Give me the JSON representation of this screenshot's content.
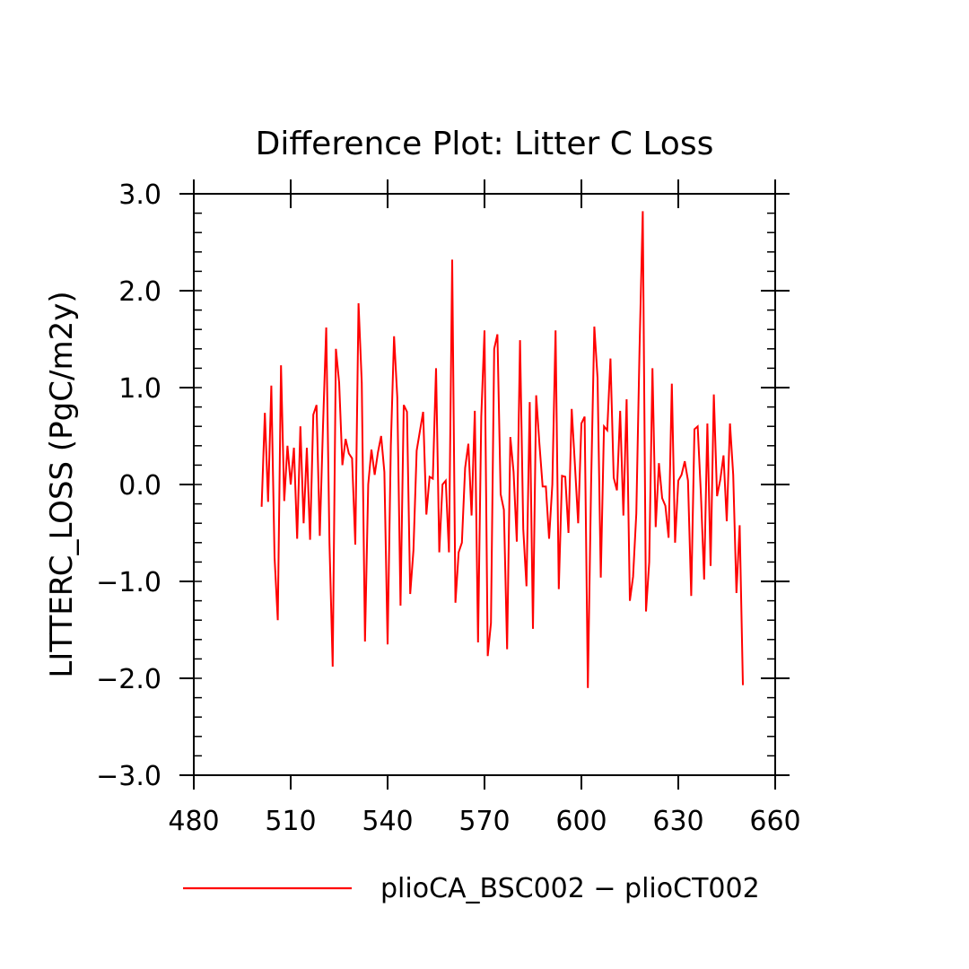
{
  "chart_data": {
    "type": "line",
    "title": "Difference Plot: Litter C Loss",
    "ylabel": "LITTERC_LOSS (PgC/m2y)",
    "xlabel": "",
    "xlim": [
      480,
      660
    ],
    "ylim": [
      -3.0,
      3.0
    ],
    "x_ticks": [
      480,
      510,
      540,
      570,
      600,
      630,
      660
    ],
    "x_tick_labels": [
      "480",
      "510",
      "540",
      "570",
      "600",
      "630",
      "660"
    ],
    "y_ticks": [
      -3.0,
      -2.0,
      -1.0,
      0.0,
      1.0,
      2.0,
      3.0
    ],
    "y_tick_labels": [
      "−3.0",
      "−2.0",
      "−1.0",
      "0.0",
      "1.0",
      "2.0",
      "3.0"
    ],
    "grid": false,
    "legend_position": "bottom",
    "series": [
      {
        "name": "plioCA_BSC002 − plioCT002",
        "color": "#ff0000",
        "x": [
          501,
          502,
          503,
          504,
          505,
          506,
          507,
          508,
          509,
          510,
          511,
          512,
          513,
          514,
          515,
          516,
          517,
          518,
          519,
          520,
          521,
          522,
          523,
          524,
          525,
          526,
          527,
          528,
          529,
          530,
          531,
          532,
          533,
          534,
          535,
          536,
          537,
          538,
          539,
          540,
          541,
          542,
          543,
          544,
          545,
          546,
          547,
          548,
          549,
          550,
          551,
          552,
          553,
          554,
          555,
          556,
          557,
          558,
          559,
          560,
          561,
          562,
          563,
          564,
          565,
          566,
          567,
          568,
          569,
          570,
          571,
          572,
          573,
          574,
          575,
          576,
          577,
          578,
          579,
          580,
          581,
          582,
          583,
          584,
          585,
          586,
          587,
          588,
          589,
          590,
          591,
          592,
          593,
          594,
          595,
          596,
          597,
          598,
          599,
          600,
          601,
          602,
          603,
          604,
          605,
          606,
          607,
          608,
          609,
          610,
          611,
          612,
          613,
          614,
          615,
          616,
          617,
          618,
          619,
          620,
          621,
          622,
          623,
          624,
          625,
          626,
          627,
          628,
          629,
          630,
          631,
          632,
          633,
          634,
          635,
          636,
          637,
          638,
          639,
          640,
          641,
          642,
          643,
          644,
          645,
          646,
          647,
          648,
          649,
          650
        ],
        "values": [
          -0.23,
          0.74,
          -0.18,
          1.02,
          -0.75,
          -1.4,
          1.23,
          -0.17,
          0.4,
          0.0,
          0.38,
          -0.56,
          0.6,
          -0.4,
          0.38,
          -0.57,
          0.72,
          0.82,
          -0.53,
          0.6,
          1.62,
          -0.6,
          -1.88,
          1.4,
          1.05,
          0.2,
          0.47,
          0.32,
          0.27,
          -0.62,
          1.87,
          1.05,
          -1.62,
          0.0,
          0.36,
          0.1,
          0.33,
          0.5,
          0.13,
          -1.65,
          0.4,
          1.53,
          0.9,
          -1.25,
          0.82,
          0.75,
          -1.13,
          -0.68,
          0.35,
          0.55,
          0.75,
          -0.31,
          0.08,
          0.06,
          1.2,
          -0.7,
          0.0,
          0.04,
          -0.7,
          2.32,
          -1.22,
          -0.7,
          -0.6,
          0.17,
          0.42,
          -0.32,
          0.76,
          -1.63,
          0.7,
          1.59,
          -1.77,
          -1.43,
          1.4,
          1.55,
          -0.1,
          -0.26,
          -1.7,
          0.49,
          0.13,
          -0.59,
          1.49,
          -0.46,
          -1.05,
          0.85,
          -1.49,
          0.92,
          0.42,
          -0.02,
          -0.02,
          -0.56,
          0.0,
          1.59,
          -1.08,
          0.09,
          0.08,
          -0.5,
          0.78,
          0.2,
          -0.4,
          0.63,
          0.7,
          -2.1,
          0.0,
          1.63,
          1.1,
          -0.96,
          0.6,
          0.56,
          1.3,
          0.07,
          -0.06,
          0.76,
          -0.32,
          0.88,
          -1.2,
          -0.95,
          -0.3,
          1.4,
          2.82,
          -1.31,
          -0.8,
          1.2,
          -0.44,
          0.22,
          -0.14,
          -0.22,
          -0.55,
          1.04,
          -0.6,
          0.04,
          0.1,
          0.24,
          0.04,
          -1.15,
          0.57,
          0.6,
          -0.1,
          -0.98,
          0.63,
          -0.84,
          0.93,
          -0.12,
          0.05,
          0.3,
          -0.38,
          0.63,
          0.1,
          -1.12,
          -0.42,
          -2.07
        ]
      }
    ]
  }
}
